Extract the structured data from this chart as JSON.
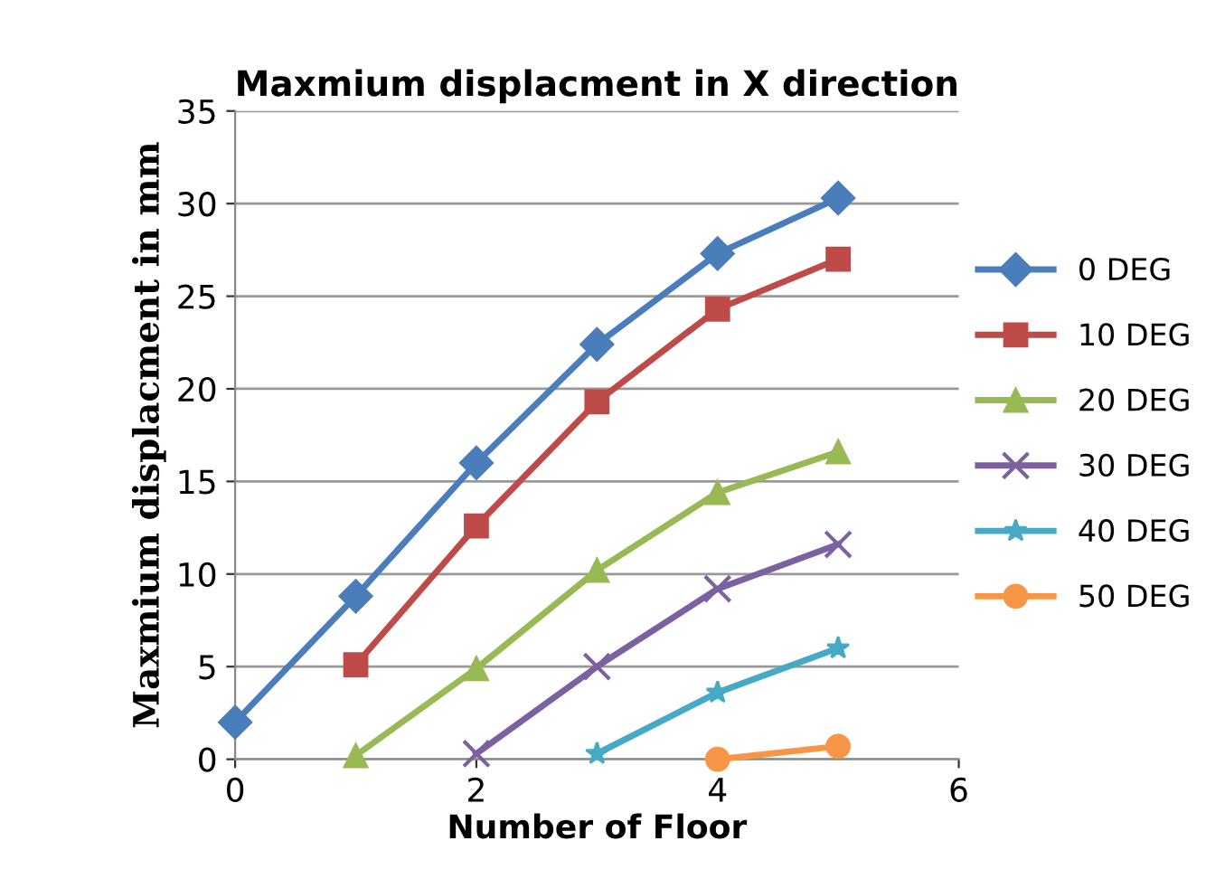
{
  "chart_data": {
    "type": "line",
    "title": "Maxmium displacment in X direction",
    "xlabel": "Number of Floor",
    "ylabel": "Maxmium displacment in mm",
    "xlim": [
      0,
      6
    ],
    "xticks": [
      0,
      2,
      4,
      6
    ],
    "ylim": [
      0,
      35
    ],
    "yticks": [
      0,
      5,
      10,
      15,
      20,
      25,
      30,
      35
    ],
    "grid": "y",
    "legend": "right",
    "line_style": "solid",
    "series": [
      {
        "name": "0 DEG",
        "color": "#4a7ebb",
        "marker": "diamond",
        "x": [
          0,
          1,
          2,
          3,
          4,
          5
        ],
        "values": [
          2.0,
          8.8,
          16.0,
          22.4,
          27.3,
          30.3
        ]
      },
      {
        "name": "10 DEG",
        "color": "#be4b48",
        "marker": "square",
        "x": [
          1,
          2,
          3,
          4,
          5
        ],
        "values": [
          5.1,
          12.6,
          19.3,
          24.3,
          27.0
        ]
      },
      {
        "name": "20 DEG",
        "color": "#98b954",
        "marker": "triangle",
        "x": [
          1,
          2,
          3,
          4,
          5
        ],
        "values": [
          0.2,
          4.9,
          10.2,
          14.4,
          16.6
        ]
      },
      {
        "name": "30 DEG",
        "color": "#7d60a0",
        "marker": "cross",
        "x": [
          2,
          3,
          4,
          5
        ],
        "values": [
          0.3,
          5.0,
          9.2,
          11.6
        ]
      },
      {
        "name": "40 DEG",
        "color": "#46aac5",
        "marker": "star",
        "x": [
          3,
          4,
          5
        ],
        "values": [
          0.3,
          3.6,
          6.0
        ]
      },
      {
        "name": "50 DEG",
        "color": "#f79646",
        "marker": "circle",
        "x": [
          4,
          5
        ],
        "values": [
          0,
          0.7
        ]
      }
    ]
  }
}
